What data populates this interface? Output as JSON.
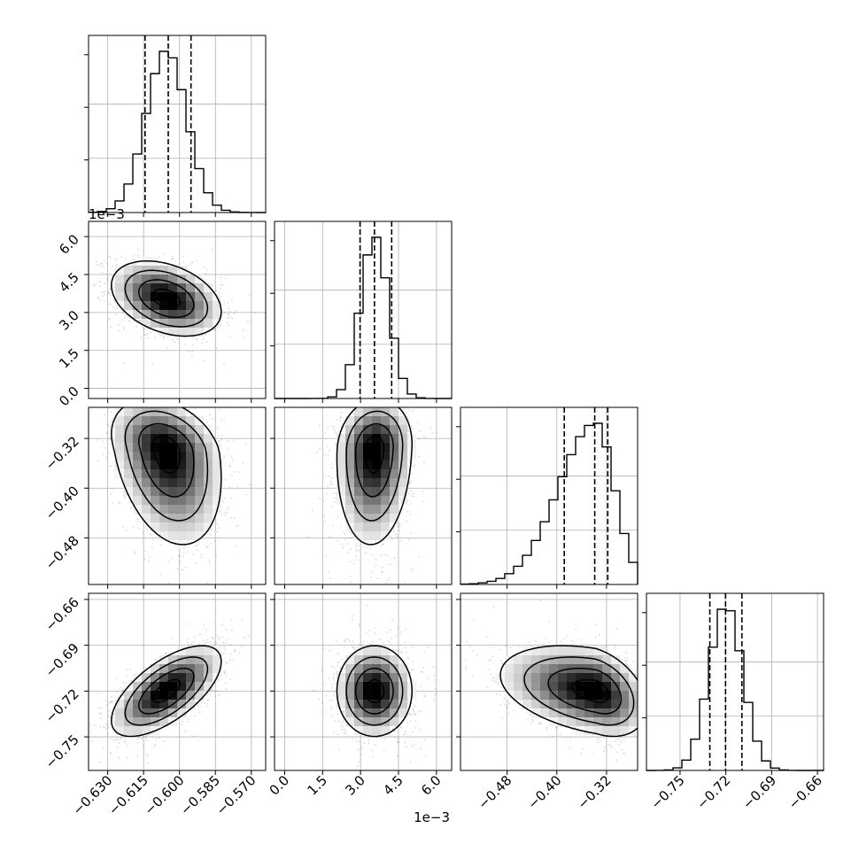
{
  "chart_data": {
    "type": "corner",
    "params": [
      {
        "range": [
          -0.638,
          -0.564
        ],
        "ticks": [
          -0.63,
          -0.615,
          -0.6,
          -0.585,
          -0.57
        ],
        "tick_labels": [
          "−0.630",
          "−0.615",
          "−0.600",
          "−0.585",
          "−0.570"
        ],
        "mean": -0.6055,
        "sd": 0.0085,
        "q16": -0.6144,
        "q50": -0.6047,
        "q84": -0.5952,
        "exponent": ""
      },
      {
        "range": [
          -0.0004,
          0.0066
        ],
        "ticks": [
          0.0,
          0.0015,
          0.003,
          0.0045,
          0.006
        ],
        "tick_labels": [
          "0.0",
          "1.5",
          "3.0",
          "4.5",
          "6.0"
        ],
        "mean": 0.00355,
        "sd": 0.00055,
        "q16": 0.00298,
        "q50": 0.00355,
        "q84": 0.00423,
        "exponent": "1e−3"
      },
      {
        "range": [
          -0.555,
          -0.27
        ],
        "ticks": [
          -0.48,
          -0.4,
          -0.32
        ],
        "tick_labels": [
          "−0.48",
          "−0.40",
          "−0.32"
        ],
        "mean": -0.337,
        "sd": 0.03,
        "q16": -0.388,
        "q50": -0.339,
        "q84": -0.318,
        "exponent": ""
      },
      {
        "range": [
          -0.772,
          -0.656
        ],
        "ticks": [
          -0.75,
          -0.72,
          -0.69,
          -0.66
        ],
        "tick_labels": [
          "−0.75",
          "−0.72",
          "−0.69",
          "−0.66"
        ],
        "mean": -0.72,
        "sd": 0.011,
        "q16": -0.7305,
        "q50": -0.7202,
        "q84": -0.7095,
        "exponent": ""
      }
    ],
    "correlations": [
      [
        1,
        -0.35,
        -0.3,
        0.65
      ],
      [
        -0.35,
        1,
        0.1,
        0.0
      ],
      [
        -0.3,
        0.1,
        1,
        -0.35
      ],
      [
        0.65,
        0.0,
        -0.35,
        1
      ]
    ],
    "histogram_bins": 20,
    "contour_levels_sigma": [
      0.5,
      1.0,
      1.5,
      2.0
    ],
    "quantile_lines": "dashed",
    "grid": true
  }
}
